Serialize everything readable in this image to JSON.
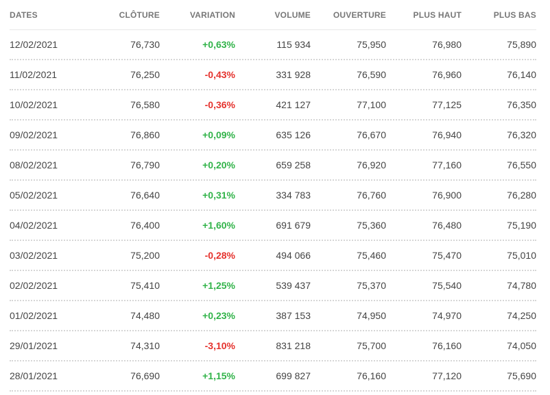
{
  "table": {
    "headers": {
      "date": "DATES",
      "close": "CLÔTURE",
      "variation": "VARIATION",
      "volume": "VOLUME",
      "open": "OUVERTURE",
      "high": "PLUS HAUT",
      "low": "PLUS BAS"
    },
    "rows": [
      {
        "date": "12/02/2021",
        "close": "76,730",
        "variation": "+0,63%",
        "volume": "115 934",
        "open": "75,950",
        "high": "76,980",
        "low": "75,890"
      },
      {
        "date": "11/02/2021",
        "close": "76,250",
        "variation": "-0,43%",
        "volume": "331 928",
        "open": "76,590",
        "high": "76,960",
        "low": "76,140"
      },
      {
        "date": "10/02/2021",
        "close": "76,580",
        "variation": "-0,36%",
        "volume": "421 127",
        "open": "77,100",
        "high": "77,125",
        "low": "76,350"
      },
      {
        "date": "09/02/2021",
        "close": "76,860",
        "variation": "+0,09%",
        "volume": "635 126",
        "open": "76,670",
        "high": "76,940",
        "low": "76,320"
      },
      {
        "date": "08/02/2021",
        "close": "76,790",
        "variation": "+0,20%",
        "volume": "659 258",
        "open": "76,920",
        "high": "77,160",
        "low": "76,550"
      },
      {
        "date": "05/02/2021",
        "close": "76,640",
        "variation": "+0,31%",
        "volume": "334 783",
        "open": "76,760",
        "high": "76,900",
        "low": "76,280"
      },
      {
        "date": "04/02/2021",
        "close": "76,400",
        "variation": "+1,60%",
        "volume": "691 679",
        "open": "75,360",
        "high": "76,480",
        "low": "75,190"
      },
      {
        "date": "03/02/2021",
        "close": "75,200",
        "variation": "-0,28%",
        "volume": "494 066",
        "open": "75,460",
        "high": "75,470",
        "low": "75,010"
      },
      {
        "date": "02/02/2021",
        "close": "75,410",
        "variation": "+1,25%",
        "volume": "539 437",
        "open": "75,370",
        "high": "75,540",
        "low": "74,780"
      },
      {
        "date": "01/02/2021",
        "close": "74,480",
        "variation": "+0,23%",
        "volume": "387 153",
        "open": "74,950",
        "high": "74,970",
        "low": "74,250"
      },
      {
        "date": "29/01/2021",
        "close": "74,310",
        "variation": "-3,10%",
        "volume": "831 218",
        "open": "75,700",
        "high": "76,160",
        "low": "74,050"
      },
      {
        "date": "28/01/2021",
        "close": "76,690",
        "variation": "+1,15%",
        "volume": "699 827",
        "open": "76,160",
        "high": "77,120",
        "low": "75,690"
      }
    ]
  },
  "colors": {
    "positive": "#31b349",
    "negative": "#e5322d",
    "header_text": "#777777"
  }
}
